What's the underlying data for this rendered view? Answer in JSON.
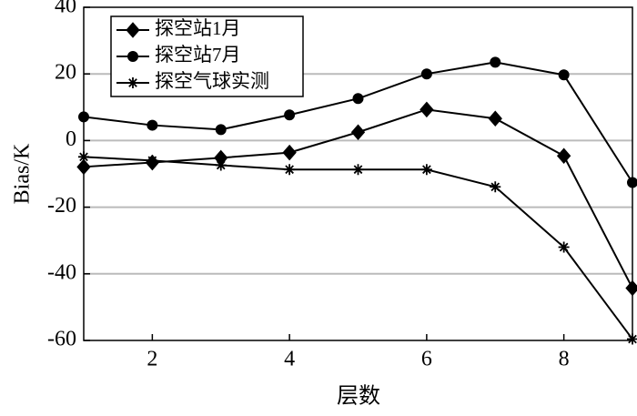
{
  "chart_data": {
    "type": "line",
    "x_label": "层数",
    "y_label": "Bias/K",
    "x": [
      1,
      2,
      3,
      4,
      5,
      6,
      7,
      8,
      9
    ],
    "series": [
      {
        "name": "探空站1月",
        "color": "#000000",
        "marker": "diamond",
        "values": [
          -7.9,
          -6.6,
          -5.2,
          -3.6,
          2.5,
          9.3,
          6.6,
          -4.6,
          -44.3
        ]
      },
      {
        "name": "探空站7月",
        "color": "#000000",
        "marker": "circle",
        "values": [
          7.1,
          4.6,
          3.3,
          7.7,
          12.6,
          20,
          23.5,
          19.7,
          -12.6
        ]
      },
      {
        "name": "探空气球实测",
        "color": "#000000",
        "marker": "asterisk",
        "values": [
          -4.9,
          -6,
          -7.4,
          -8.7,
          -8.7,
          -8.7,
          -13.9,
          -32,
          -59.6
        ]
      }
    ],
    "xlim": [
      1,
      9
    ],
    "xticks": [
      2,
      4,
      6,
      8
    ],
    "ylim": [
      -60,
      40
    ],
    "yticks": [
      -60,
      -40,
      -20,
      0,
      20,
      40
    ],
    "grid": true,
    "legend": "upper left"
  }
}
